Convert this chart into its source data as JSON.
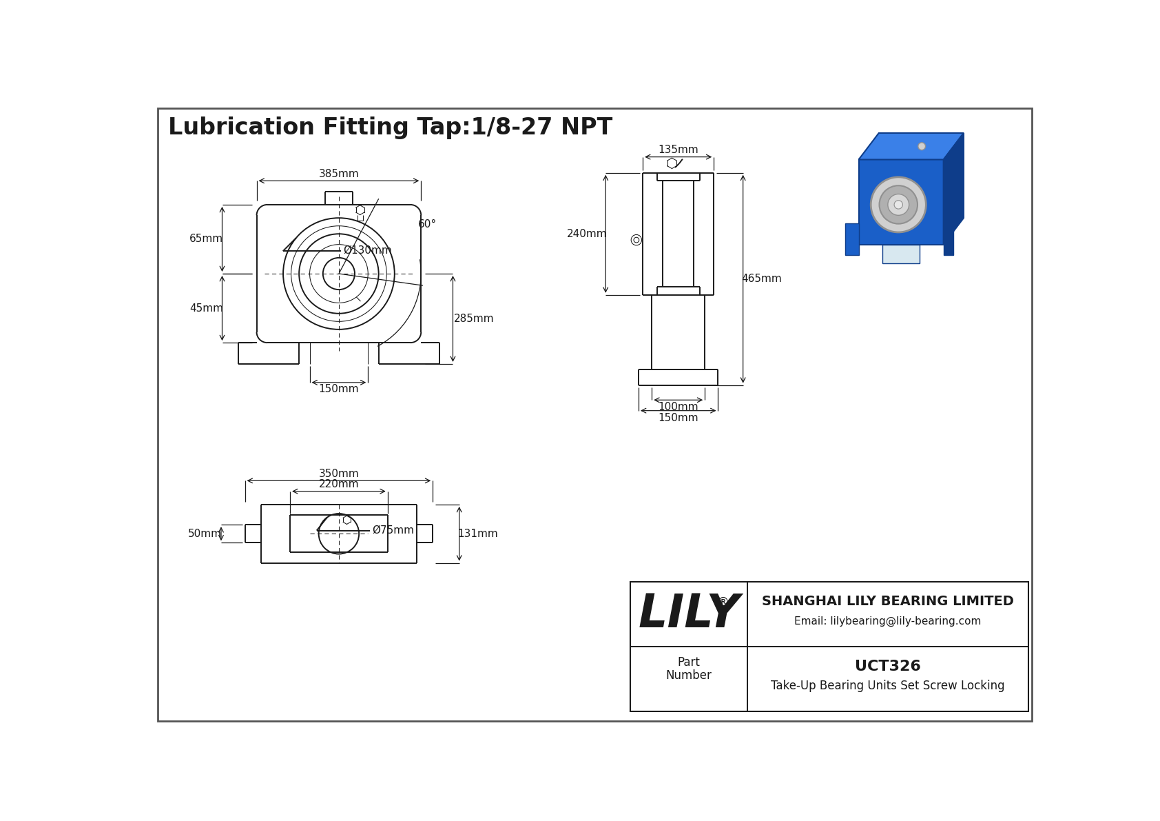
{
  "title": "Lubrication Fitting Tap:1/8-27 NPT",
  "part_number": "UCT326",
  "part_description": "Take-Up Bearing Units Set Screw Locking",
  "company": "LILY",
  "company_full": "SHANGHAI LILY BEARING LIMITED",
  "company_email": "Email: lilybearing@lily-bearing.com",
  "bg_color": "#ffffff",
  "line_color": "#1a1a1a",
  "border_color": "#555555",
  "dim_labels": {
    "front_width": "385mm",
    "front_h1": "65mm",
    "front_h2": "45mm",
    "front_vert": "285mm",
    "front_slot": "150mm",
    "front_bore": "Ø130mm",
    "front_angle": "60°",
    "side_width": "135mm",
    "side_h1": "240mm",
    "side_total": "465mm",
    "side_inner": "100mm",
    "side_outer": "150mm",
    "bot_outer": "350mm",
    "bot_inner": "220mm",
    "bot_height": "131mm",
    "bot_foot": "50mm",
    "bot_bore": "Ø75mm"
  },
  "iso_blue": "#1a5fc8",
  "iso_blue_light": "#3a80e8",
  "iso_blue_dark": "#0e3d8a",
  "iso_gray": "#909090",
  "iso_gray_light": "#d0d0d0"
}
